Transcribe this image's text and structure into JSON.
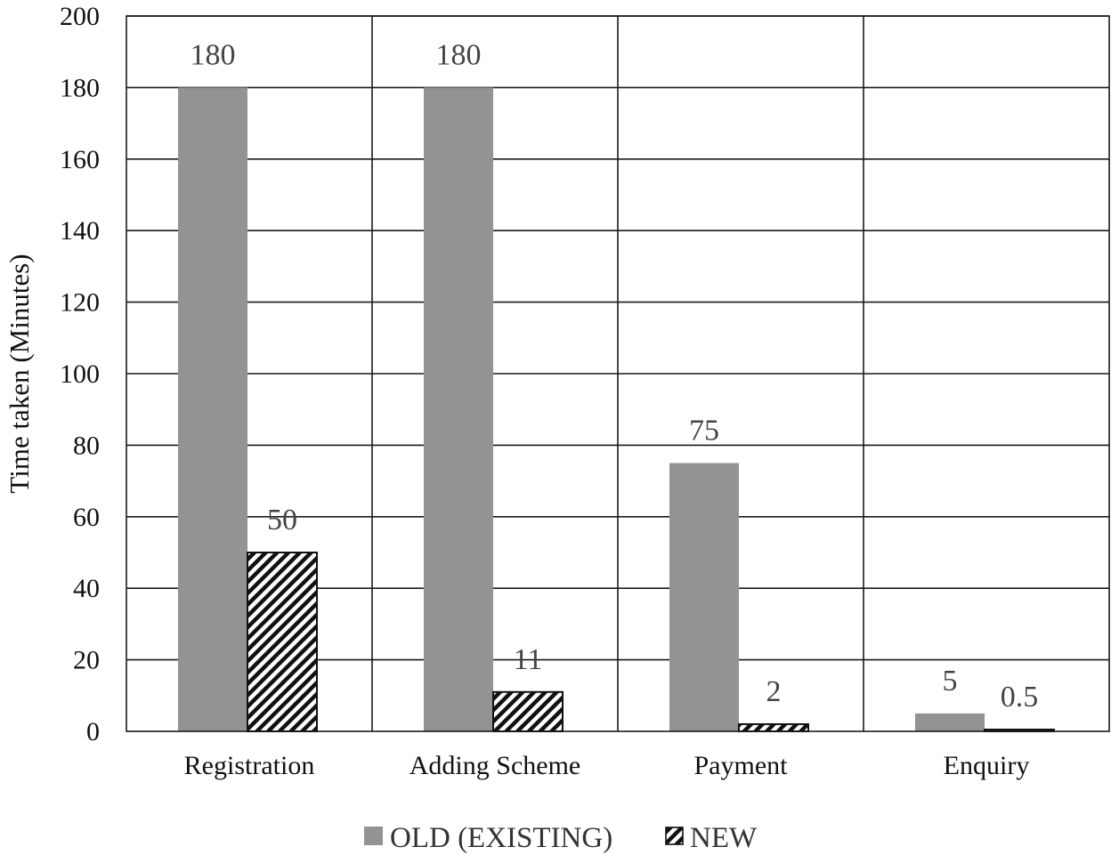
{
  "chart_data": {
    "type": "bar",
    "categories": [
      "Registration",
      "Adding Scheme",
      "Payment",
      "Enquiry"
    ],
    "series": [
      {
        "name": "OLD (EXISTING)",
        "values": [
          180,
          180,
          75,
          5
        ],
        "labels": [
          "180",
          "180",
          "75",
          "5"
        ],
        "color": "#939393",
        "pattern": "solid"
      },
      {
        "name": "NEW",
        "values": [
          50,
          11,
          2,
          0.5
        ],
        "labels": [
          "50",
          "11",
          "2",
          "0.5"
        ],
        "color": "#ffffff",
        "pattern": "diagonal-hatch"
      }
    ],
    "title": "",
    "xlabel": "",
    "ylabel": "Time taken (Minutes)",
    "ylim": [
      0,
      200
    ],
    "yticks": [
      "0",
      "20",
      "40",
      "60",
      "80",
      "100",
      "120",
      "140",
      "160",
      "180",
      "200"
    ],
    "grid": true,
    "legend": "bottom-center"
  }
}
